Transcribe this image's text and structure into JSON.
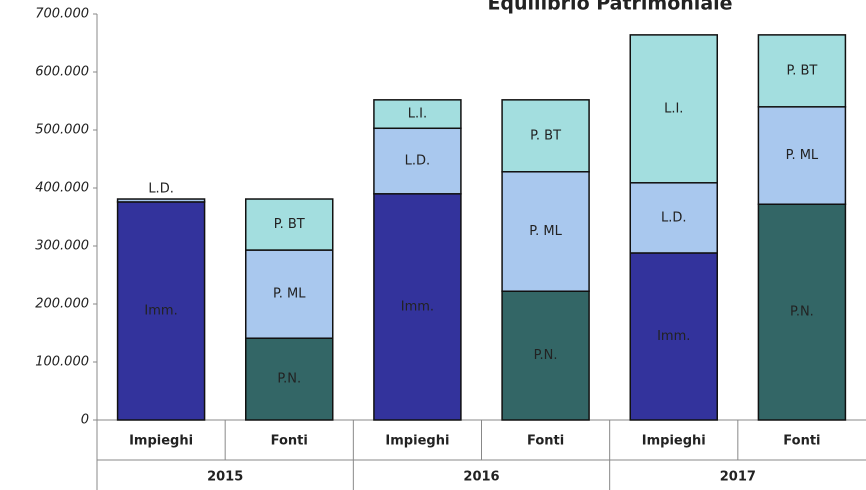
{
  "chart_data": {
    "type": "stacked-bar",
    "title": "Equilibrio Patrimoniale",
    "categories": [
      "Impieghi",
      "Fonti",
      "Impieghi",
      "Fonti",
      "Impieghi",
      "Fonti"
    ],
    "groups": [
      "2015",
      "2016",
      "2017"
    ],
    "series": [
      {
        "name": "Imm.",
        "color": "#33339c",
        "values": [
          376000,
          null,
          390000,
          null,
          288000,
          null
        ]
      },
      {
        "name": "L.D.",
        "color": "#a9c8ee",
        "values": [
          5000,
          null,
          113000,
          null,
          121000,
          null
        ]
      },
      {
        "name": "L.I.",
        "color": "#a3dedf",
        "values": [
          null,
          null,
          49000,
          null,
          255000,
          null
        ]
      },
      {
        "name": "P.N.",
        "color": "#336666",
        "values": [
          null,
          141000,
          null,
          222000,
          null,
          372000
        ]
      },
      {
        "name": "P. ML",
        "color": "#a9c8ee",
        "values": [
          null,
          152000,
          null,
          206000,
          null,
          168000
        ]
      },
      {
        "name": "P. BT",
        "color": "#a3dedf",
        "values": [
          null,
          88000,
          null,
          124000,
          null,
          124000
        ]
      }
    ],
    "ylim": [
      0,
      700000
    ],
    "yticks": [
      0,
      {
        "value": 100000,
        "label": "100.000"
      },
      {
        "value": 200000,
        "label": "200.000"
      },
      {
        "value": 300000,
        "label": "300.000"
      },
      {
        "value": 400000,
        "label": "400.000"
      },
      {
        "value": 500000,
        "label": "500.000"
      },
      {
        "value": 600000,
        "label": "600.000"
      },
      {
        "value": 700000,
        "label": "700.000"
      }
    ]
  }
}
